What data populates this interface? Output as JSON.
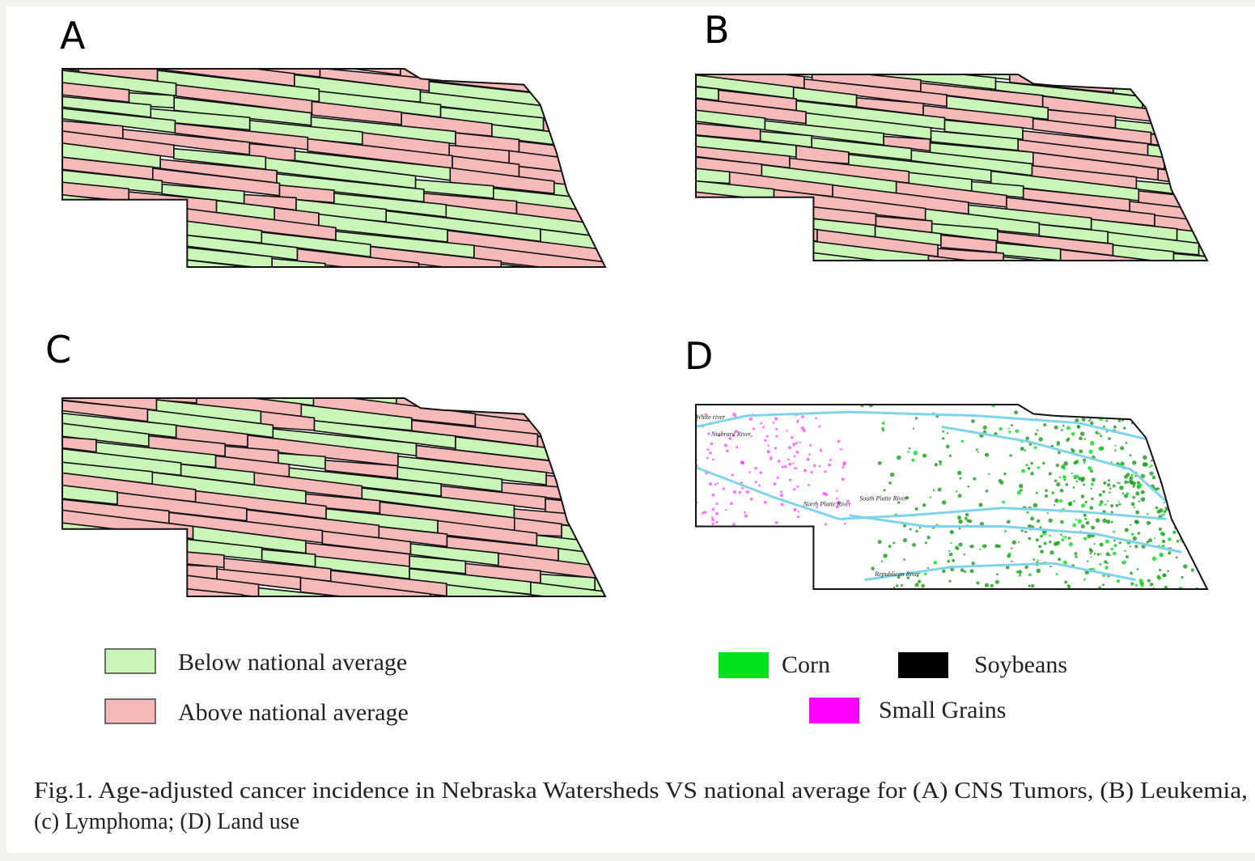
{
  "panels": [
    {
      "label": "A"
    },
    {
      "label": "B"
    },
    {
      "label": "C"
    },
    {
      "label": "D"
    }
  ],
  "legend_incidence": [
    {
      "label": "Below national average",
      "color": "#c9f5b7"
    },
    {
      "label": "Above national average",
      "color": "#f5b9b9"
    }
  ],
  "legend_land_use": [
    {
      "label": "Corn",
      "color": "#00e31c"
    },
    {
      "label": "Soybeans",
      "color": "#000000"
    },
    {
      "label": "Small Grains",
      "color": "#ff00ff"
    }
  ],
  "map_d_labels": [
    "White river",
    "Niobrara River",
    "North Platte River",
    "South Platte River",
    "Republican River"
  ],
  "caption": [
    "Fig.1. Age-adjusted cancer incidence in Nebraska Watersheds VS national average for (A) CNS Tumors, (B) Leukemia,",
    "(c) Lymphoma; (D) Land use"
  ]
}
